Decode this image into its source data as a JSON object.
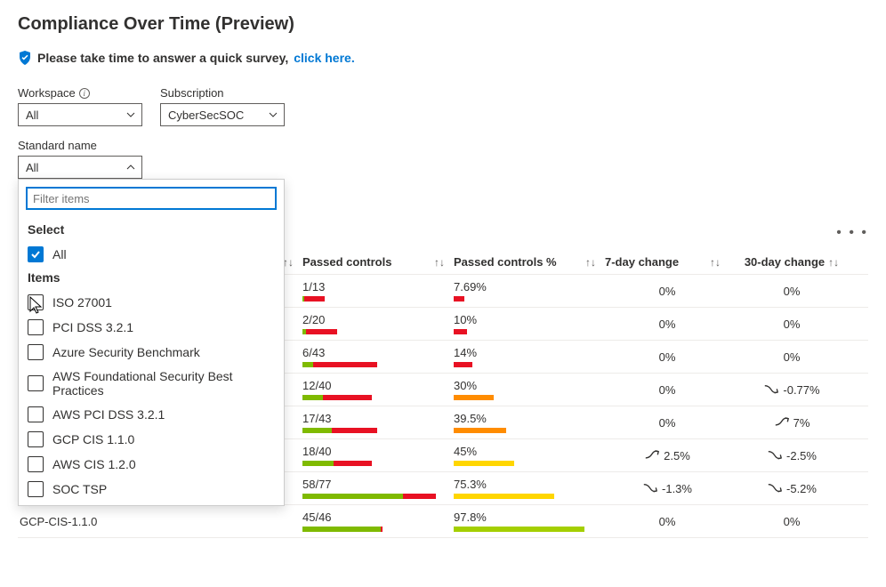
{
  "page_title": "Compliance Over Time (Preview)",
  "survey": {
    "text": "Please take time to answer a quick survey,",
    "link_text": "click here.",
    "shield_color": "#0078d4"
  },
  "filters": {
    "workspace": {
      "label": "Workspace",
      "value": "All"
    },
    "subscription": {
      "label": "Subscription",
      "value": "CyberSecSOC"
    },
    "standard": {
      "label": "Standard name",
      "value": "All"
    }
  },
  "dropdown": {
    "filter_placeholder": "Filter items",
    "select_label": "Select",
    "all_label": "All",
    "all_checked": true,
    "items_label": "Items",
    "items": [
      {
        "label": "ISO 27001",
        "checked": false
      },
      {
        "label": "PCI DSS 3.2.1",
        "checked": false
      },
      {
        "label": "Azure Security Benchmark",
        "checked": false
      },
      {
        "label": "AWS Foundational Security Best Practices",
        "checked": false
      },
      {
        "label": "AWS PCI DSS 3.2.1",
        "checked": false
      },
      {
        "label": "GCP CIS 1.1.0",
        "checked": false
      },
      {
        "label": "AWS CIS 1.2.0",
        "checked": false
      },
      {
        "label": "SOC TSP",
        "checked": false
      }
    ]
  },
  "table": {
    "columns": {
      "passed": "Passed controls",
      "passed_pct": "Passed controls %",
      "d7": "7-day change",
      "d30": "30-day change"
    },
    "colors": {
      "green": "#7fba00",
      "red": "#e81123",
      "orange": "#ff8c00",
      "yellow": "#ffd600",
      "lime": "#a4cf00"
    },
    "rows": [
      {
        "name": "",
        "passed": "1/13",
        "bar": {
          "g": 1,
          "r": 12,
          "t": 77
        },
        "pct": "7.69%",
        "pct_val": 7.69,
        "pct_color": "red",
        "d7": {
          "v": "0%",
          "t": "flat"
        },
        "d30": {
          "v": "0%",
          "t": "flat"
        }
      },
      {
        "name": "",
        "passed": "2/20",
        "bar": {
          "g": 2,
          "r": 18,
          "t": 77
        },
        "pct": "10%",
        "pct_val": 10,
        "pct_color": "red",
        "d7": {
          "v": "0%",
          "t": "flat"
        },
        "d30": {
          "v": "0%",
          "t": "flat"
        }
      },
      {
        "name": "",
        "passed": "6/43",
        "bar": {
          "g": 6,
          "r": 37,
          "t": 77
        },
        "pct": "14%",
        "pct_val": 14,
        "pct_color": "red",
        "d7": {
          "v": "0%",
          "t": "flat"
        },
        "d30": {
          "v": "0%",
          "t": "flat"
        }
      },
      {
        "name": "",
        "passed": "12/40",
        "bar": {
          "g": 12,
          "r": 28,
          "t": 77
        },
        "pct": "30%",
        "pct_val": 30,
        "pct_color": "orange",
        "d7": {
          "v": "0%",
          "t": "flat"
        },
        "d30": {
          "v": "-0.77%",
          "t": "down"
        }
      },
      {
        "name": "",
        "passed": "17/43",
        "bar": {
          "g": 17,
          "r": 26,
          "t": 77
        },
        "pct": "39.5%",
        "pct_val": 39.5,
        "pct_color": "orange",
        "d7": {
          "v": "0%",
          "t": "flat"
        },
        "d30": {
          "v": "7%",
          "t": "up"
        }
      },
      {
        "name": "",
        "passed": "18/40",
        "bar": {
          "g": 18,
          "r": 22,
          "t": 77
        },
        "pct": "45%",
        "pct_val": 45,
        "pct_color": "yellow",
        "d7": {
          "v": "2.5%",
          "t": "up"
        },
        "d30": {
          "v": "-2.5%",
          "t": "down"
        }
      },
      {
        "name": "",
        "passed": "58/77",
        "bar": {
          "g": 58,
          "r": 19,
          "t": 77
        },
        "pct": "75.3%",
        "pct_val": 75.3,
        "pct_color": "yellow",
        "d7": {
          "v": "-1.3%",
          "t": "down"
        },
        "d30": {
          "v": "-5.2%",
          "t": "down"
        }
      },
      {
        "name": "GCP-CIS-1.1.0",
        "passed": "45/46",
        "bar": {
          "g": 45,
          "r": 1,
          "t": 77
        },
        "pct": "97.8%",
        "pct_val": 97.8,
        "pct_color": "lime",
        "d7": {
          "v": "0%",
          "t": "flat"
        },
        "d30": {
          "v": "0%",
          "t": "flat"
        }
      }
    ]
  }
}
